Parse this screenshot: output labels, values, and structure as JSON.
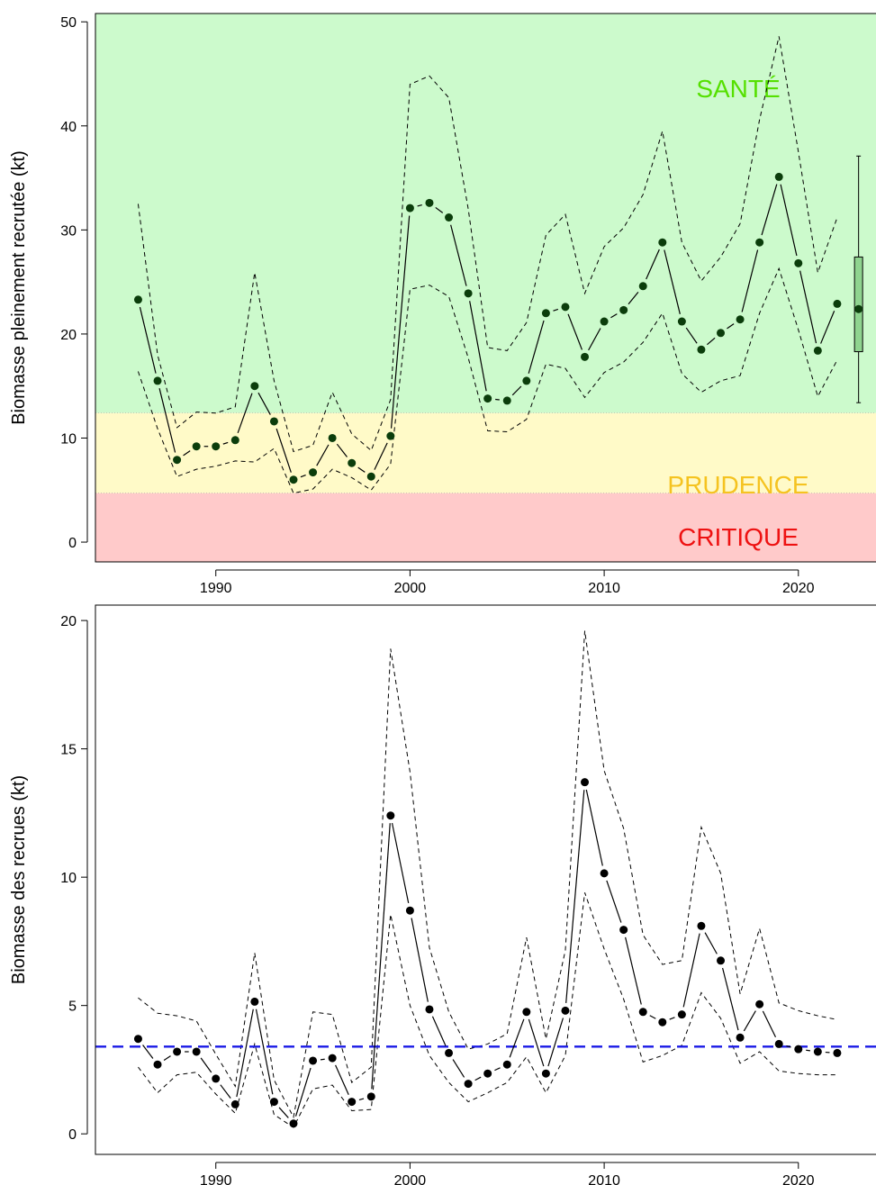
{
  "chart_data": [
    {
      "type": "line",
      "ylabel": "Biomasse pleinement recrutée (kt)",
      "xlim": [
        1983.8,
        2024.6
      ],
      "ylim": [
        -1.9,
        50.8
      ],
      "xticks": [
        "1990",
        "2000",
        "2010",
        "2020"
      ],
      "xtick_values": [
        1990,
        2000,
        2010,
        2020
      ],
      "yticks": [
        "0",
        "10",
        "20",
        "30",
        "40",
        "50"
      ],
      "ytick_values": [
        0,
        10,
        20,
        30,
        40,
        50
      ],
      "zones": [
        {
          "name": "SANTÉ",
          "from": 12.4,
          "to": 50.8,
          "fill": "#ccfacc",
          "label_color": "#55e000"
        },
        {
          "name": "PRUDENCE",
          "from": 4.7,
          "to": 12.4,
          "fill": "#fffac8",
          "label_color": "#f5c320"
        },
        {
          "name": "CRITIQUE",
          "from": -1.9,
          "to": 4.7,
          "fill": "#ffcaca",
          "label_color": "#ee1111"
        }
      ],
      "x": [
        1986,
        1987,
        1988,
        1989,
        1990,
        1991,
        1992,
        1993,
        1994,
        1995,
        1996,
        1997,
        1998,
        1999,
        2000,
        2001,
        2002,
        2003,
        2004,
        2005,
        2006,
        2007,
        2008,
        2009,
        2010,
        2011,
        2012,
        2013,
        2014,
        2015,
        2016,
        2017,
        2018,
        2019,
        2020,
        2021,
        2022
      ],
      "series": [
        {
          "role": "estimate",
          "values": [
            23.3,
            15.5,
            7.9,
            9.2,
            9.2,
            9.8,
            15.0,
            11.6,
            6.0,
            6.7,
            10.0,
            7.6,
            6.3,
            10.2,
            32.1,
            32.6,
            31.2,
            23.9,
            13.8,
            13.6,
            15.5,
            22.0,
            22.6,
            17.8,
            21.2,
            22.3,
            24.6,
            28.8,
            21.2,
            18.5,
            20.1,
            21.4,
            28.8,
            35.1,
            26.8,
            18.4,
            22.9
          ]
        },
        {
          "role": "upper",
          "values": [
            32.5,
            18.0,
            11.0,
            12.5,
            12.4,
            13.0,
            25.9,
            15.5,
            8.7,
            9.3,
            14.4,
            10.4,
            8.8,
            13.7,
            44.0,
            44.8,
            42.7,
            32.0,
            18.7,
            18.4,
            21.1,
            29.5,
            31.5,
            23.9,
            28.4,
            30.2,
            33.4,
            39.5,
            28.8,
            25.1,
            27.4,
            30.6,
            40.6,
            48.6,
            37.5,
            25.9,
            31.2
          ]
        },
        {
          "role": "lower",
          "values": [
            16.4,
            10.9,
            6.3,
            7.0,
            7.3,
            7.8,
            7.7,
            9.0,
            4.7,
            5.1,
            7.0,
            6.2,
            5.0,
            7.5,
            24.3,
            24.7,
            23.6,
            17.7,
            10.7,
            10.6,
            11.8,
            17.1,
            16.7,
            13.9,
            16.3,
            17.3,
            19.2,
            22.0,
            16.2,
            14.4,
            15.5,
            16.0,
            22.0,
            26.3,
            20.4,
            14.0,
            17.5
          ]
        }
      ],
      "boxplot": {
        "x": 2023.1,
        "min": 13.4,
        "q1": 18.3,
        "median": 22.4,
        "q3": 27.4,
        "max": 37.1
      }
    },
    {
      "type": "line",
      "ylabel": "Biomasse des recrues (kt)",
      "xlim": [
        1983.8,
        2024.6
      ],
      "ylim": [
        -0.8,
        20.6
      ],
      "xticks": [
        "1990",
        "2000",
        "2010",
        "2020"
      ],
      "xtick_values": [
        1990,
        2000,
        2010,
        2020
      ],
      "yticks": [
        "0",
        "5",
        "10",
        "15",
        "20"
      ],
      "ytick_values": [
        0,
        5,
        10,
        15,
        20
      ],
      "reference_line": {
        "value": 3.4,
        "color": "#1a1ae6"
      },
      "x": [
        1986,
        1987,
        1988,
        1989,
        1990,
        1991,
        1992,
        1993,
        1994,
        1995,
        1996,
        1997,
        1998,
        1999,
        2000,
        2001,
        2002,
        2003,
        2004,
        2005,
        2006,
        2007,
        2008,
        2009,
        2010,
        2011,
        2012,
        2013,
        2014,
        2015,
        2016,
        2017,
        2018,
        2019,
        2020,
        2021,
        2022
      ],
      "series": [
        {
          "role": "estimate",
          "values": [
            3.7,
            2.7,
            3.2,
            3.2,
            2.15,
            1.15,
            5.15,
            1.25,
            0.4,
            2.85,
            2.95,
            1.25,
            1.45,
            12.4,
            8.7,
            4.85,
            3.15,
            1.95,
            2.35,
            2.7,
            4.75,
            2.35,
            4.8,
            13.7,
            10.15,
            7.95,
            4.75,
            4.35,
            4.65,
            8.1,
            6.75,
            3.75,
            5.05,
            3.5,
            3.3,
            3.2,
            3.15
          ]
        },
        {
          "role": "upper",
          "values": [
            5.3,
            4.7,
            4.6,
            4.4,
            3.1,
            1.85,
            7.05,
            2.1,
            0.65,
            4.75,
            4.65,
            2.0,
            2.6,
            18.9,
            14.1,
            7.25,
            4.75,
            3.3,
            3.5,
            3.9,
            7.65,
            3.7,
            7.15,
            19.6,
            14.15,
            11.9,
            7.75,
            6.6,
            6.75,
            11.95,
            10.15,
            5.45,
            8.0,
            5.1,
            4.8,
            4.6,
            4.45
          ]
        },
        {
          "role": "lower",
          "values": [
            2.6,
            1.6,
            2.3,
            2.4,
            1.55,
            0.8,
            3.5,
            0.75,
            0.25,
            1.75,
            1.9,
            0.9,
            0.95,
            8.55,
            5.0,
            3.05,
            2.0,
            1.25,
            1.6,
            2.0,
            3.0,
            1.6,
            3.05,
            9.4,
            7.2,
            5.25,
            2.8,
            3.05,
            3.45,
            5.5,
            4.5,
            2.75,
            3.2,
            2.45,
            2.35,
            2.3,
            2.3
          ]
        }
      ]
    }
  ]
}
